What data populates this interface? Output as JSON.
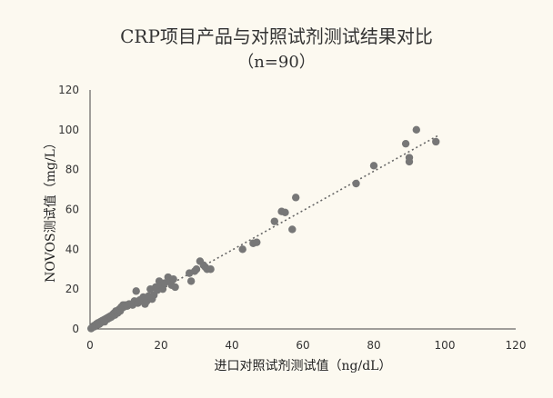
{
  "chart_data": {
    "type": "scatter",
    "title": "CRP项目产品与对照试剂测试结果对比",
    "subtitle": "（n=90）",
    "xlabel": "进口对照试剂测试值（ng/dL）",
    "ylabel": "NOVOS测试值（mg/L）",
    "xlim": [
      0,
      120
    ],
    "ylim": [
      0,
      120
    ],
    "xticks": [
      0,
      20,
      40,
      60,
      80,
      100,
      120
    ],
    "yticks": [
      0,
      20,
      40,
      60,
      80,
      100,
      120
    ],
    "grid": false,
    "trendline": {
      "style": "dotted",
      "x": [
        0,
        98
      ],
      "y": [
        0,
        97
      ]
    },
    "point_color": "#777777",
    "points": [
      [
        0.5,
        0.5
      ],
      [
        0.8,
        1
      ],
      [
        1,
        1.5
      ],
      [
        1.3,
        1.2
      ],
      [
        1.5,
        2
      ],
      [
        1.8,
        2.5
      ],
      [
        2,
        2
      ],
      [
        2.2,
        3
      ],
      [
        2.5,
        2.8
      ],
      [
        2.8,
        3.5
      ],
      [
        3,
        3
      ],
      [
        3.3,
        4
      ],
      [
        3.5,
        3.8
      ],
      [
        3.8,
        4.5
      ],
      [
        4,
        4
      ],
      [
        4.3,
        5
      ],
      [
        4.5,
        4.8
      ],
      [
        4.8,
        5.5
      ],
      [
        5,
        5
      ],
      [
        5.3,
        6
      ],
      [
        5.5,
        5.5
      ],
      [
        5.8,
        6.5
      ],
      [
        6,
        6
      ],
      [
        6.3,
        7
      ],
      [
        6.5,
        7.5
      ],
      [
        6.8,
        8
      ],
      [
        7,
        7
      ],
      [
        7.3,
        9
      ],
      [
        7.5,
        8.5
      ],
      [
        7.8,
        8
      ],
      [
        8,
        9.5
      ],
      [
        8.3,
        10
      ],
      [
        8.5,
        9
      ],
      [
        8.8,
        11
      ],
      [
        9,
        10.5
      ],
      [
        9.3,
        12
      ],
      [
        9.5,
        11
      ],
      [
        10,
        12
      ],
      [
        10.5,
        11.5
      ],
      [
        11,
        12.5
      ],
      [
        12,
        12
      ],
      [
        12.5,
        14
      ],
      [
        13,
        19
      ],
      [
        13.5,
        13
      ],
      [
        14,
        14.5
      ],
      [
        15,
        16
      ],
      [
        15.5,
        12.5
      ],
      [
        16,
        14
      ],
      [
        16.5,
        16.5
      ],
      [
        17,
        20
      ],
      [
        17.5,
        15
      ],
      [
        18,
        17
      ],
      [
        18.5,
        21
      ],
      [
        19,
        19.5
      ],
      [
        19.5,
        24
      ],
      [
        20,
        22
      ],
      [
        20.5,
        20
      ],
      [
        21,
        23
      ],
      [
        22,
        26
      ],
      [
        22.5,
        24
      ],
      [
        23,
        22
      ],
      [
        23.5,
        25
      ],
      [
        24,
        21
      ],
      [
        28,
        28
      ],
      [
        28.5,
        24
      ],
      [
        29.5,
        29
      ],
      [
        30,
        30
      ],
      [
        31,
        34
      ],
      [
        32,
        32
      ],
      [
        32.5,
        31
      ],
      [
        33,
        30
      ],
      [
        34,
        30
      ],
      [
        43,
        40
      ],
      [
        46,
        43
      ],
      [
        47,
        43.5
      ],
      [
        52,
        54
      ],
      [
        54,
        59
      ],
      [
        55,
        58.5
      ],
      [
        57,
        50
      ],
      [
        58,
        66
      ],
      [
        75,
        73
      ],
      [
        80,
        82
      ],
      [
        89,
        93
      ],
      [
        90,
        86
      ],
      [
        90,
        84
      ],
      [
        92,
        100
      ],
      [
        97.5,
        94
      ],
      [
        0.3,
        0.2
      ],
      [
        2.6,
        2.4
      ],
      [
        4.1,
        3.6
      ]
    ]
  }
}
